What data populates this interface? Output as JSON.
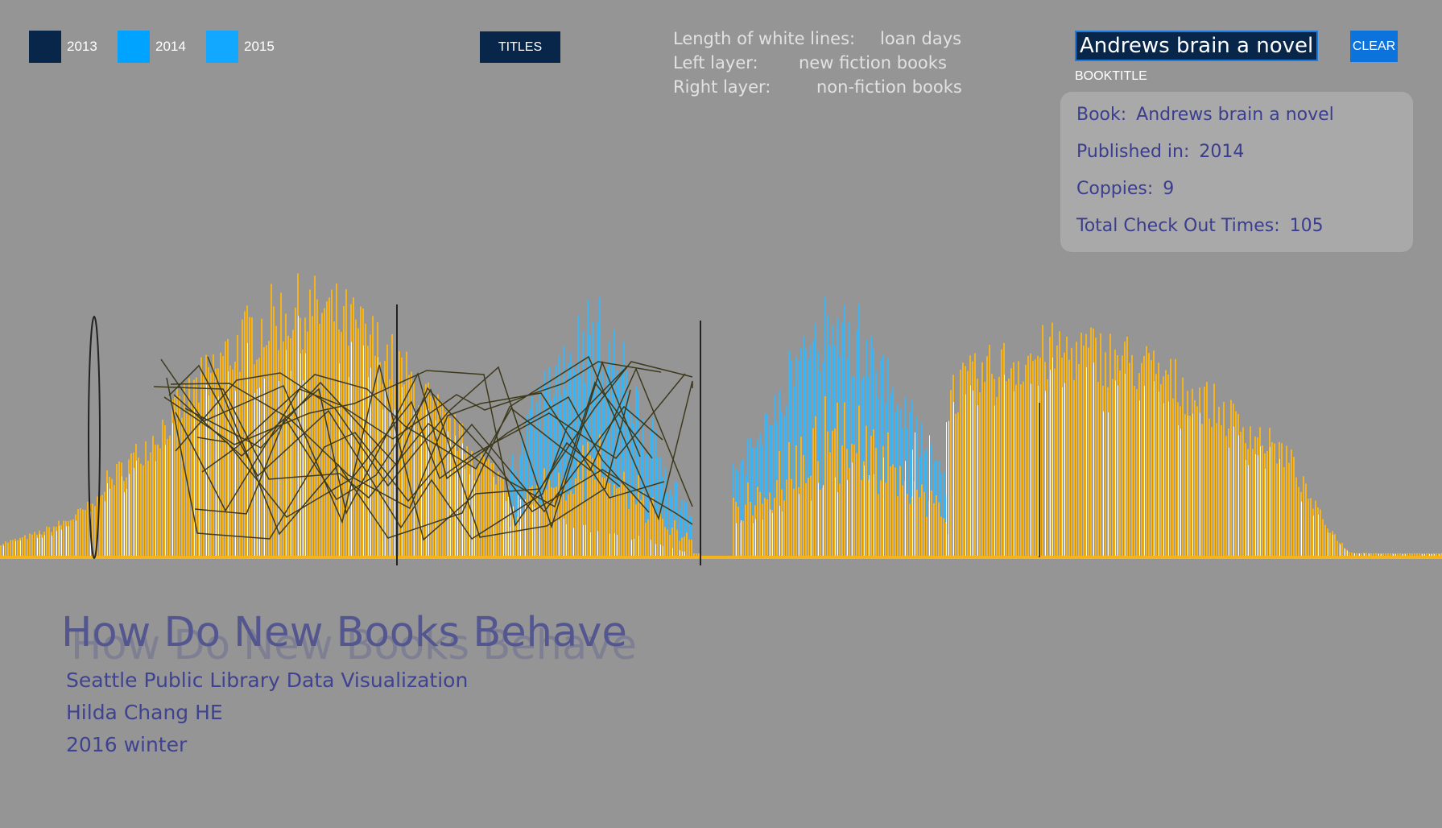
{
  "legend": [
    {
      "label": "2013",
      "color": "#08264a"
    },
    {
      "label": "2014",
      "color": "#00a3ff"
    },
    {
      "label": "2015",
      "color": "#12a8ff"
    }
  ],
  "toolbar": {
    "titles_label": "TITLES",
    "clear_label": "CLEAR"
  },
  "info": [
    {
      "key": "Length of white lines:",
      "value": "loan days"
    },
    {
      "key": "Left layer:",
      "value": "new fiction books"
    },
    {
      "key": "Right layer:",
      "value": "non-fiction books"
    }
  ],
  "search": {
    "value": "Andrews brain a novel",
    "label": "BOOKTITLE"
  },
  "detail": {
    "book_key": "Book:",
    "book": "Andrews brain a novel",
    "published_key": "Published in:",
    "published": "2014",
    "copies_key": "Coppies:",
    "copies": "9",
    "checkouts_key": "Total Check Out Times:",
    "checkouts": "105"
  },
  "colors": {
    "fiction": "#f6b41c",
    "nonfiction": "#3fb4f0",
    "lines": "#3d3a1c"
  },
  "footer": {
    "title": "How Do New Books Behave",
    "line1": "Seattle Public Library Data Visualization",
    "line2": "Hilda Chang HE",
    "line3": "2016 winter"
  }
}
